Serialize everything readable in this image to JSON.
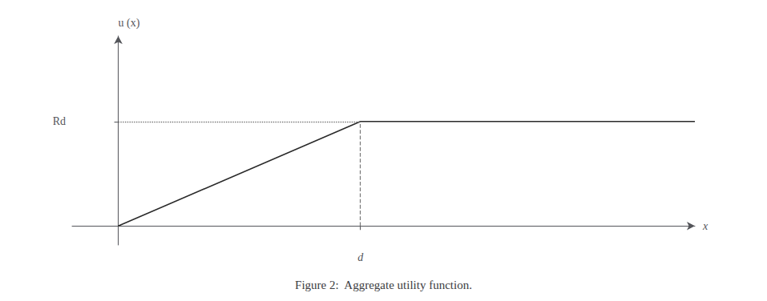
{
  "chart_data": {
    "type": "line",
    "title": "Figure 2:  Aggregate utility function.",
    "xlabel": "x",
    "ylabel": "u (x)",
    "x": [
      0,
      0.42,
      1.0
    ],
    "values": [
      0,
      0.55,
      0.55
    ],
    "color": "#2a2a2a",
    "xlim": [
      -0.08,
      1.0
    ],
    "ylim": [
      -0.1,
      1.0
    ],
    "xticks": [
      {
        "value": 0.42,
        "label": "d"
      }
    ],
    "yticks": [
      {
        "value": 0.55,
        "label": "Rd"
      }
    ],
    "grid": false
  }
}
